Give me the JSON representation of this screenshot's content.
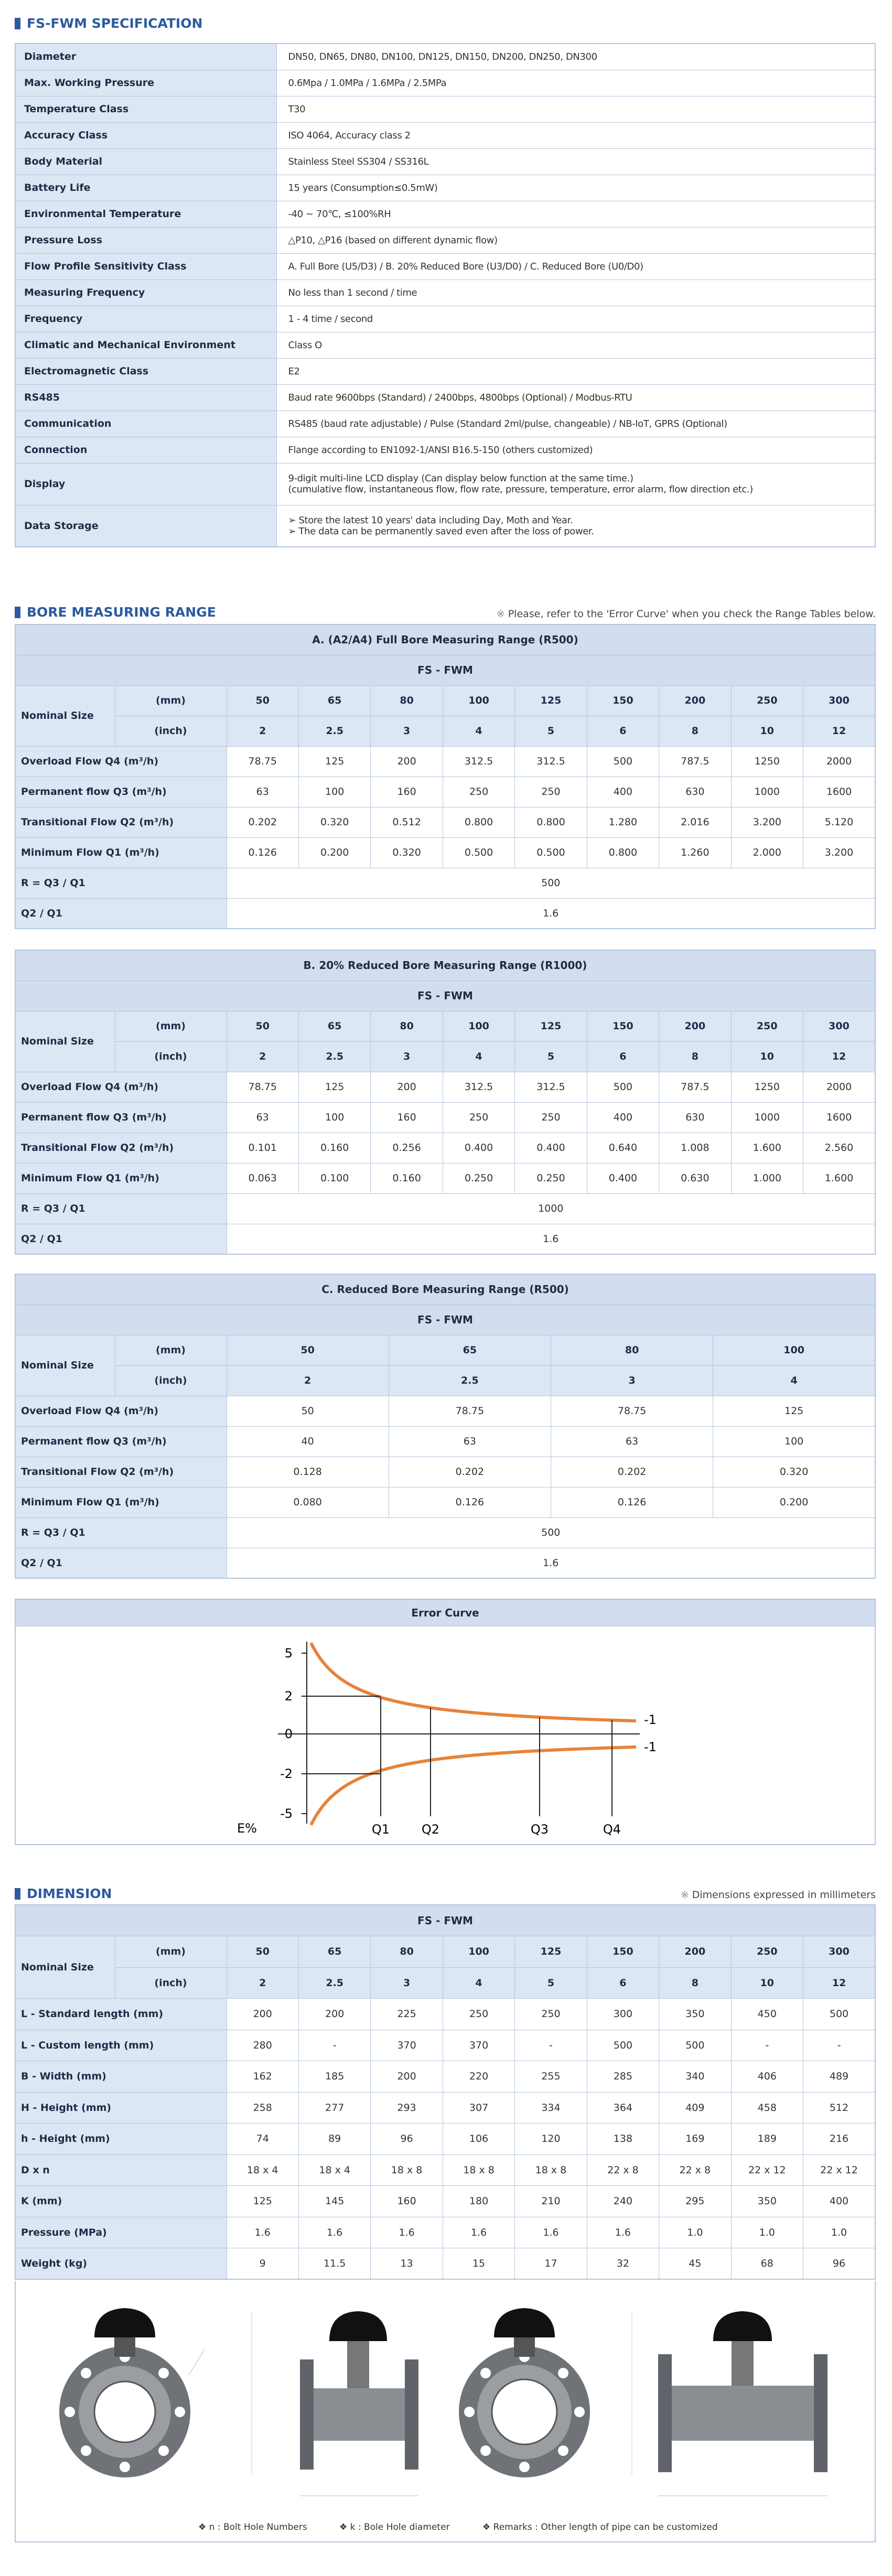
{
  "spec": {
    "title": "FS-FWM SPECIFICATION",
    "rows": [
      {
        "label": "Diameter",
        "value": "DN50, DN65, DN80, DN100, DN125, DN150, DN200, DN250, DN300"
      },
      {
        "label": "Max. Working Pressure",
        "value": "0.6Mpa / 1.0MPa / 1.6MPa / 2.5MPa"
      },
      {
        "label": "Temperature Class",
        "value": "T30"
      },
      {
        "label": "Accuracy Class",
        "value": "ISO 4064, Accuracy class 2"
      },
      {
        "label": "Body Material",
        "value": "Stainless Steel SS304 / SS316L"
      },
      {
        "label": "Battery Life",
        "value": "15 years (Consumption≤0.5mW)"
      },
      {
        "label": "Environmental Temperature",
        "value": "-40 ~ 70℃, ≤100%RH"
      },
      {
        "label": "Pressure Loss",
        "value": "△P10, △P16 (based on different dynamic flow)"
      },
      {
        "label": "Flow Profile Sensitivity Class",
        "value": "A. Full Bore (U5/D3) / B. 20% Reduced Bore (U3/D0) / C. Reduced Bore (U0/D0)"
      },
      {
        "label": "Measuring Frequency",
        "value": "No less than 1 second / time"
      },
      {
        "label": "Frequency",
        "value": "1 - 4 time / second"
      },
      {
        "label": "Climatic and Mechanical Environment",
        "value": "Class O"
      },
      {
        "label": "Electromagnetic Class",
        "value": "E2"
      },
      {
        "label": "RS485",
        "value": "Baud rate 9600bps (Standard) / 2400bps, 4800bps (Optional) / Modbus-RTU"
      },
      {
        "label": "Communication",
        "value": "RS485 (baud rate adjustable) / Pulse (Standard 2ml/pulse, changeable) / NB-IoT, GPRS (Optional)"
      },
      {
        "label": "Connection",
        "value": "Flange according to EN1092-1/ANSI B16.5-150 (others customized)"
      },
      {
        "label": "Display",
        "lines": [
          "9-digit multi-line LCD display (Can display below function at the same time.)",
          "(cumulative flow, instantaneous flow, flow rate, pressure, temperature, error alarm, flow direction etc.)"
        ]
      },
      {
        "label": "Data Storage",
        "bullets": [
          "Store the latest 10 years' data including Day, Moth and Year.",
          "The data can be permanently saved even after the loss of power."
        ]
      }
    ]
  },
  "bore": {
    "title": "BORE MEASURING RANGE",
    "note": "Please, refer to the 'Error Curve' when you check the Range Tables below.",
    "tables": [
      {
        "title": "A. (A2/A4) Full Bore Measuring Range (R500)",
        "model": "FS - FWM",
        "size_label": "Nominal Size",
        "mm_label": "(mm)",
        "inch_label": "(inch)",
        "mm": [
          "50",
          "65",
          "80",
          "100",
          "125",
          "150",
          "200",
          "250",
          "300"
        ],
        "inch": [
          "2",
          "2.5",
          "3",
          "4",
          "5",
          "6",
          "8",
          "10",
          "12"
        ],
        "rows": [
          {
            "label": "Overload Flow Q4 (m³/h)",
            "values": [
              "78.75",
              "125",
              "200",
              "312.5",
              "312.5",
              "500",
              "787.5",
              "1250",
              "2000"
            ]
          },
          {
            "label": "Permanent flow Q3 (m³/h)",
            "values": [
              "63",
              "100",
              "160",
              "250",
              "250",
              "400",
              "630",
              "1000",
              "1600"
            ]
          },
          {
            "label": "Transitional Flow Q2 (m³/h)",
            "values": [
              "0.202",
              "0.320",
              "0.512",
              "0.800",
              "0.800",
              "1.280",
              "2.016",
              "3.200",
              "5.120"
            ]
          },
          {
            "label": "Minimum Flow Q1 (m³/h)",
            "values": [
              "0.126",
              "0.200",
              "0.320",
              "0.500",
              "0.500",
              "0.800",
              "1.260",
              "2.000",
              "3.200"
            ]
          }
        ],
        "ratios": [
          {
            "label": "R = Q3 / Q1",
            "value": "500"
          },
          {
            "label": "Q2 / Q1",
            "value": "1.6"
          }
        ]
      },
      {
        "title": "B. 20% Reduced Bore Measuring Range (R1000)",
        "model": "FS - FWM",
        "size_label": "Nominal Size",
        "mm_label": "(mm)",
        "inch_label": "(inch)",
        "mm": [
          "50",
          "65",
          "80",
          "100",
          "125",
          "150",
          "200",
          "250",
          "300"
        ],
        "inch": [
          "2",
          "2.5",
          "3",
          "4",
          "5",
          "6",
          "8",
          "10",
          "12"
        ],
        "rows": [
          {
            "label": "Overload Flow Q4 (m³/h)",
            "values": [
              "78.75",
              "125",
              "200",
              "312.5",
              "312.5",
              "500",
              "787.5",
              "1250",
              "2000"
            ]
          },
          {
            "label": "Permanent flow Q3 (m³/h)",
            "values": [
              "63",
              "100",
              "160",
              "250",
              "250",
              "400",
              "630",
              "1000",
              "1600"
            ]
          },
          {
            "label": "Transitional Flow Q2 (m³/h)",
            "values": [
              "0.101",
              "0.160",
              "0.256",
              "0.400",
              "0.400",
              "0.640",
              "1.008",
              "1.600",
              "2.560"
            ]
          },
          {
            "label": "Minimum Flow Q1 (m³/h)",
            "values": [
              "0.063",
              "0.100",
              "0.160",
              "0.250",
              "0.250",
              "0.400",
              "0.630",
              "1.000",
              "1.600"
            ]
          }
        ],
        "ratios": [
          {
            "label": "R = Q3 / Q1",
            "value": "1000"
          },
          {
            "label": "Q2 / Q1",
            "value": "1.6"
          }
        ]
      },
      {
        "title": "C. Reduced Bore Measuring Range (R500)",
        "model": "FS - FWM",
        "size_label": "Nominal Size",
        "mm_label": "(mm)",
        "inch_label": "(inch)",
        "mm": [
          "50",
          "65",
          "80",
          "100"
        ],
        "inch": [
          "2",
          "2.5",
          "3",
          "4"
        ],
        "rows": [
          {
            "label": "Overload Flow Q4 (m³/h)",
            "values": [
              "50",
              "78.75",
              "78.75",
              "125"
            ]
          },
          {
            "label": "Permanent flow Q3 (m³/h)",
            "values": [
              "40",
              "63",
              "63",
              "100"
            ]
          },
          {
            "label": "Transitional Flow Q2 (m³/h)",
            "values": [
              "0.128",
              "0.202",
              "0.202",
              "0.320"
            ]
          },
          {
            "label": "Minimum Flow Q1 (m³/h)",
            "values": [
              "0.080",
              "0.126",
              "0.126",
              "0.200"
            ]
          }
        ],
        "ratios": [
          {
            "label": "R = Q3 / Q1",
            "value": "500"
          },
          {
            "label": "Q2 / Q1",
            "value": "1.6"
          }
        ]
      }
    ]
  },
  "error_curve": {
    "title": "Error Curve",
    "y_labels": [
      "5",
      "2",
      "0",
      "-2",
      "-5"
    ],
    "y_axis_label": "E%",
    "x_labels": [
      "Q1",
      "Q2",
      "Q3",
      "Q4"
    ],
    "curve_labels": [
      "-1",
      "-1"
    ]
  },
  "dimension": {
    "title": "DIMENSION",
    "note": "Dimensions expressed in millimeters",
    "table": {
      "model": "FS - FWM",
      "size_label": "Nominal Size",
      "mm_label": "(mm)",
      "inch_label": "(inch)",
      "mm": [
        "50",
        "65",
        "80",
        "100",
        "125",
        "150",
        "200",
        "250",
        "300"
      ],
      "inch": [
        "2",
        "2.5",
        "3",
        "4",
        "5",
        "6",
        "8",
        "10",
        "12"
      ],
      "rows": [
        {
          "label": "L - Standard length (mm)",
          "values": [
            "200",
            "200",
            "225",
            "250",
            "250",
            "300",
            "350",
            "450",
            "500"
          ]
        },
        {
          "label": "L - Custom length (mm)",
          "values": [
            "280",
            "-",
            "370",
            "370",
            "-",
            "500",
            "500",
            "-",
            "-"
          ]
        },
        {
          "label": "B - Width (mm)",
          "values": [
            "162",
            "185",
            "200",
            "220",
            "255",
            "285",
            "340",
            "406",
            "489"
          ]
        },
        {
          "label": "H - Height (mm)",
          "values": [
            "258",
            "277",
            "293",
            "307",
            "334",
            "364",
            "409",
            "458",
            "512"
          ]
        },
        {
          "label": "h - Height (mm)",
          "values": [
            "74",
            "89",
            "96",
            "106",
            "120",
            "138",
            "169",
            "189",
            "216"
          ]
        },
        {
          "label": "D x n",
          "values": [
            "18 x 4",
            "18 x 4",
            "18 x 8",
            "18 x 8",
            "18 x 8",
            "22 x 8",
            "22 x 8",
            "22 x 12",
            "22 x 12"
          ]
        },
        {
          "label": "K (mm)",
          "values": [
            "125",
            "145",
            "160",
            "180",
            "210",
            "240",
            "295",
            "350",
            "400"
          ]
        },
        {
          "label": "Pressure (MPa)",
          "values": [
            "1.6",
            "1.6",
            "1.6",
            "1.6",
            "1.6",
            "1.6",
            "1.0",
            "1.0",
            "1.0"
          ]
        },
        {
          "label": "Weight (kg)",
          "values": [
            "9",
            "11.5",
            "13",
            "15",
            "17",
            "32",
            "45",
            "68",
            "96"
          ]
        }
      ]
    },
    "notes": [
      "n : Bolt Hole Numbers",
      "k : Bole Hole diameter",
      "Remarks : Other length of pipe can be customized"
    ]
  }
}
